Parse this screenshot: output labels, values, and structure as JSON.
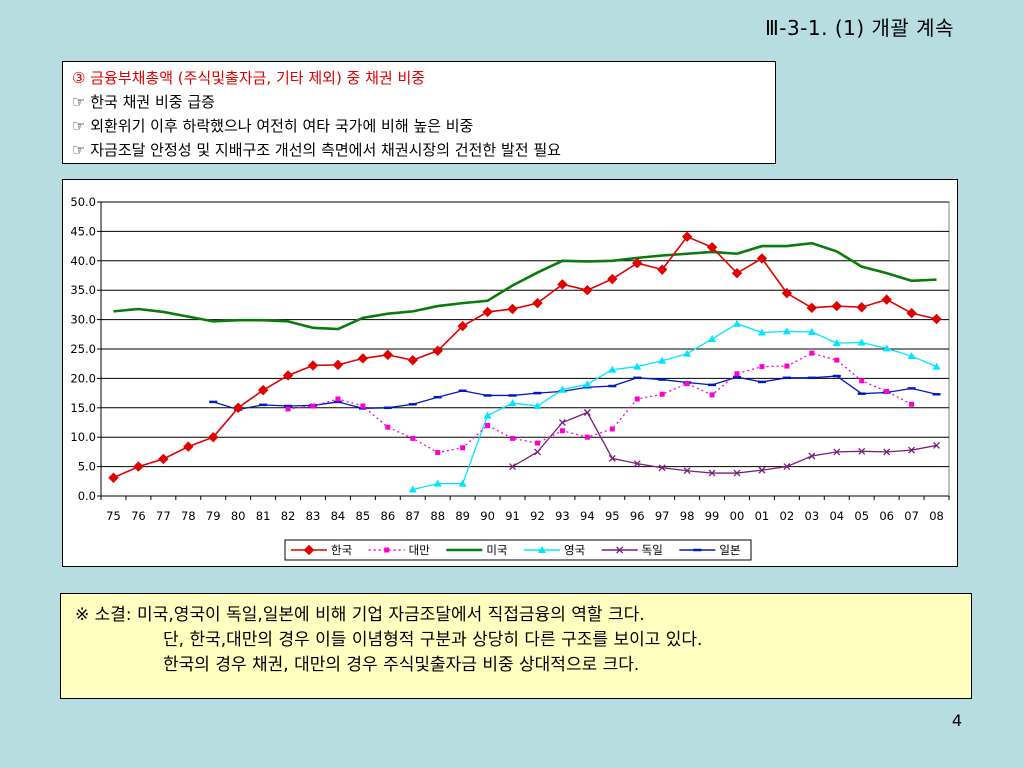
{
  "title": "Ⅲ-3-1. (1) 개괄 계속",
  "summary": {
    "heading": "③ 금융부채총액 (주식및출자금, 기타 제외) 중 채권 비중",
    "bullets": [
      "☞ 한국 채권 비중 급증",
      "☞ 외환위기 이후 하락했으나 여전히 여타 국가에 비해 높은 비중",
      "☞ 자금조달 안정성 및 지배구조 개선의 측면에서 채권시장의 건전한 발전 필요"
    ]
  },
  "chart_data": {
    "type": "line",
    "categories": [
      "75",
      "76",
      "77",
      "78",
      "79",
      "80",
      "81",
      "82",
      "83",
      "84",
      "85",
      "86",
      "87",
      "88",
      "89",
      "90",
      "91",
      "92",
      "93",
      "94",
      "95",
      "96",
      "97",
      "98",
      "99",
      "00",
      "01",
      "02",
      "03",
      "04",
      "05",
      "06",
      "07",
      "08"
    ],
    "y_ticks": [
      "50.0",
      "45.0",
      "40.0",
      "35.0",
      "30.0",
      "25.0",
      "20.0",
      "15.0",
      "10.0",
      "5.0",
      "0.0"
    ],
    "ylim": [
      0,
      50
    ],
    "grid": true,
    "legend_position": "bottom",
    "series": [
      {
        "name": "한국",
        "color": "#e00000",
        "style": "solid",
        "marker": "diamond",
        "values": [
          3.1,
          5.0,
          6.3,
          8.4,
          10.0,
          15.0,
          18.0,
          20.5,
          22.2,
          22.3,
          23.4,
          24.0,
          23.1,
          24.7,
          28.9,
          31.3,
          31.8,
          32.8,
          36.0,
          35.0,
          36.9,
          39.6,
          38.5,
          44.1,
          42.3,
          37.9,
          40.4,
          34.5,
          32.0,
          32.3,
          32.1,
          33.4,
          31.1,
          30.1
        ]
      },
      {
        "name": "대만",
        "color": "#ff00cc",
        "style": "dotted",
        "marker": "square",
        "values": [
          null,
          null,
          null,
          null,
          null,
          null,
          null,
          14.8,
          15.3,
          16.5,
          15.3,
          11.7,
          9.8,
          7.4,
          8.2,
          12.0,
          9.8,
          9.0,
          11.1,
          10.0,
          11.4,
          16.5,
          17.3,
          19.1,
          17.2,
          20.8,
          22.0,
          22.1,
          24.3,
          23.1,
          19.6,
          17.8,
          15.6,
          null
        ]
      },
      {
        "name": "미국",
        "color": "#0a7a0a",
        "style": "solid",
        "marker": "none",
        "values": [
          31.4,
          31.8,
          31.3,
          30.5,
          29.7,
          29.9,
          29.9,
          29.7,
          28.6,
          28.4,
          30.3,
          31.0,
          31.4,
          32.3,
          32.8,
          33.2,
          35.8,
          38.0,
          40.0,
          39.9,
          40.0,
          40.5,
          40.9,
          41.2,
          41.5,
          41.2,
          42.5,
          42.5,
          43.0,
          41.6,
          39.0,
          37.9,
          36.6,
          36.8
        ]
      },
      {
        "name": "영국",
        "color": "#00e5ff",
        "style": "solid",
        "marker": "triangle",
        "values": [
          null,
          null,
          null,
          null,
          null,
          null,
          null,
          null,
          null,
          null,
          null,
          null,
          1.1,
          2.1,
          2.1,
          13.7,
          15.8,
          15.3,
          18.1,
          19.0,
          21.5,
          22.0,
          23.0,
          24.2,
          26.7,
          29.3,
          27.8,
          28.0,
          27.9,
          26.0,
          26.1,
          25.1,
          23.8,
          22.0
        ]
      },
      {
        "name": "독일",
        "color": "#7a1f7a",
        "style": "solid",
        "marker": "x",
        "values": [
          null,
          null,
          null,
          null,
          null,
          null,
          null,
          null,
          null,
          null,
          null,
          null,
          null,
          null,
          null,
          null,
          5.0,
          7.5,
          12.5,
          14.2,
          6.4,
          5.5,
          4.8,
          4.3,
          3.9,
          3.9,
          4.4,
          5.0,
          6.8,
          7.5,
          7.6,
          7.5,
          7.8,
          8.6
        ]
      },
      {
        "name": "일본",
        "color": "#0018c0",
        "style": "solid",
        "marker": "dash",
        "values": [
          null,
          null,
          null,
          null,
          16.0,
          14.7,
          15.5,
          15.3,
          15.4,
          16.0,
          14.9,
          15.0,
          15.6,
          16.8,
          17.9,
          17.1,
          17.1,
          17.5,
          17.8,
          18.5,
          18.7,
          20.1,
          19.8,
          19.3,
          18.9,
          20.2,
          19.4,
          20.1,
          20.1,
          20.4,
          17.4,
          17.6,
          18.3,
          17.3
        ]
      }
    ]
  },
  "note": {
    "lines": [
      "※ 소결: 미국,영국이 독일,일본에 비해 기업 자금조달에서 직접금융의 역할 크다.",
      "단, 한국,대만의 경우 이들 이념형적 구분과 상당히 다른 구조를 보이고 있다.",
      "한국의 경우 채권, 대만의 경우 주식및출자금 비중 상대적으로 크다."
    ]
  },
  "page_number": "4"
}
